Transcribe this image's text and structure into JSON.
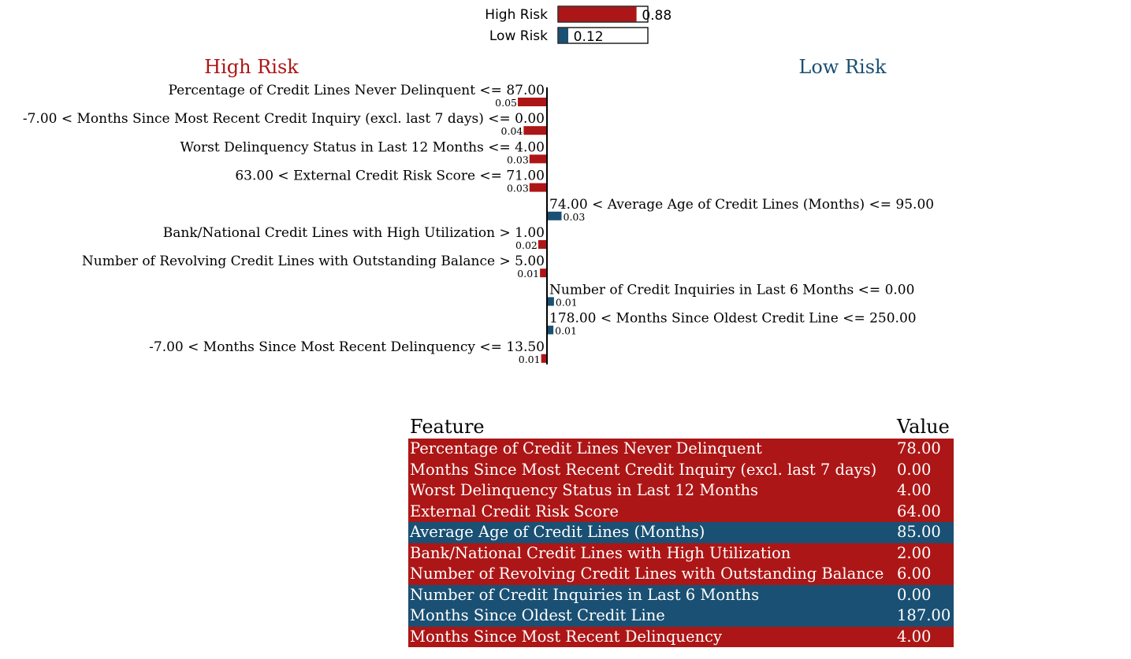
{
  "colors": {
    "high_risk": "#ad1616",
    "low_risk": "#1a5073",
    "axis": "#000000"
  },
  "chart_data": [
    {
      "type": "bar",
      "orientation": "horizontal",
      "categories": [
        "High Risk",
        "Low Risk"
      ],
      "values": [
        0.88,
        0.12
      ],
      "value_labels": [
        "0.88",
        "0.12"
      ],
      "xlim": [
        0,
        1
      ],
      "colors": [
        "#ad1616",
        "#1a5073"
      ]
    },
    {
      "type": "bar",
      "orientation": "horizontal",
      "side_titles": {
        "left": "High Risk",
        "right": "Low Risk"
      },
      "bars": [
        {
          "label": "Percentage of Credit Lines Never Delinquent <= 87.00",
          "value": 0.05,
          "value_label": "0.05",
          "class": "High Risk"
        },
        {
          "label": "-7.00 < Months Since Most Recent Credit Inquiry (excl. last 7 days) <= 0.00",
          "value": 0.04,
          "value_label": "0.04",
          "class": "High Risk"
        },
        {
          "label": "Worst Delinquency Status in Last 12 Months <= 4.00",
          "value": 0.03,
          "value_label": "0.03",
          "class": "High Risk"
        },
        {
          "label": "63.00 < External Credit Risk Score <= 71.00",
          "value": 0.03,
          "value_label": "0.03",
          "class": "High Risk"
        },
        {
          "label": "74.00 < Average Age of Credit Lines (Months) <= 95.00",
          "value": 0.025,
          "value_label": "0.03",
          "class": "Low Risk"
        },
        {
          "label": "Bank/National Credit Lines with High Utilization > 1.00",
          "value": 0.015,
          "value_label": "0.02",
          "class": "High Risk"
        },
        {
          "label": "Number of Revolving Credit Lines with Outstanding Balance > 5.00",
          "value": 0.012,
          "value_label": "0.01",
          "class": "High Risk"
        },
        {
          "label": "Number of Credit Inquiries in Last 6 Months <= 0.00",
          "value": 0.012,
          "value_label": "0.01",
          "class": "Low Risk"
        },
        {
          "label": "178.00 < Months Since Oldest Credit Line <= 250.00",
          "value": 0.011,
          "value_label": "0.01",
          "class": "Low Risk"
        },
        {
          "label": "-7.00 < Months Since Most Recent Delinquency <= 13.50",
          "value": 0.01,
          "value_label": "0.01",
          "class": "High Risk"
        }
      ]
    },
    {
      "type": "table",
      "columns": [
        "Feature",
        "Value"
      ],
      "rows": [
        {
          "feature": "Percentage of Credit Lines Never Delinquent",
          "value": "78.00",
          "class": "High Risk"
        },
        {
          "feature": "Months Since Most Recent Credit Inquiry (excl. last 7 days)",
          "value": "0.00",
          "class": "High Risk"
        },
        {
          "feature": "Worst Delinquency Status in Last 12 Months",
          "value": "4.00",
          "class": "High Risk"
        },
        {
          "feature": "External Credit Risk Score",
          "value": "64.00",
          "class": "High Risk"
        },
        {
          "feature": "Average Age of Credit Lines (Months)",
          "value": "85.00",
          "class": "Low Risk"
        },
        {
          "feature": "Bank/National Credit Lines with High Utilization",
          "value": "2.00",
          "class": "High Risk"
        },
        {
          "feature": "Number of Revolving Credit Lines with Outstanding Balance",
          "value": "6.00",
          "class": "High Risk"
        },
        {
          "feature": "Number of Credit Inquiries in Last 6 Months",
          "value": "0.00",
          "class": "Low Risk"
        },
        {
          "feature": "Months Since Oldest Credit Line",
          "value": "187.00",
          "class": "Low Risk"
        },
        {
          "feature": "Months Since Most Recent Delinquency",
          "value": "4.00",
          "class": "High Risk"
        }
      ]
    }
  ]
}
